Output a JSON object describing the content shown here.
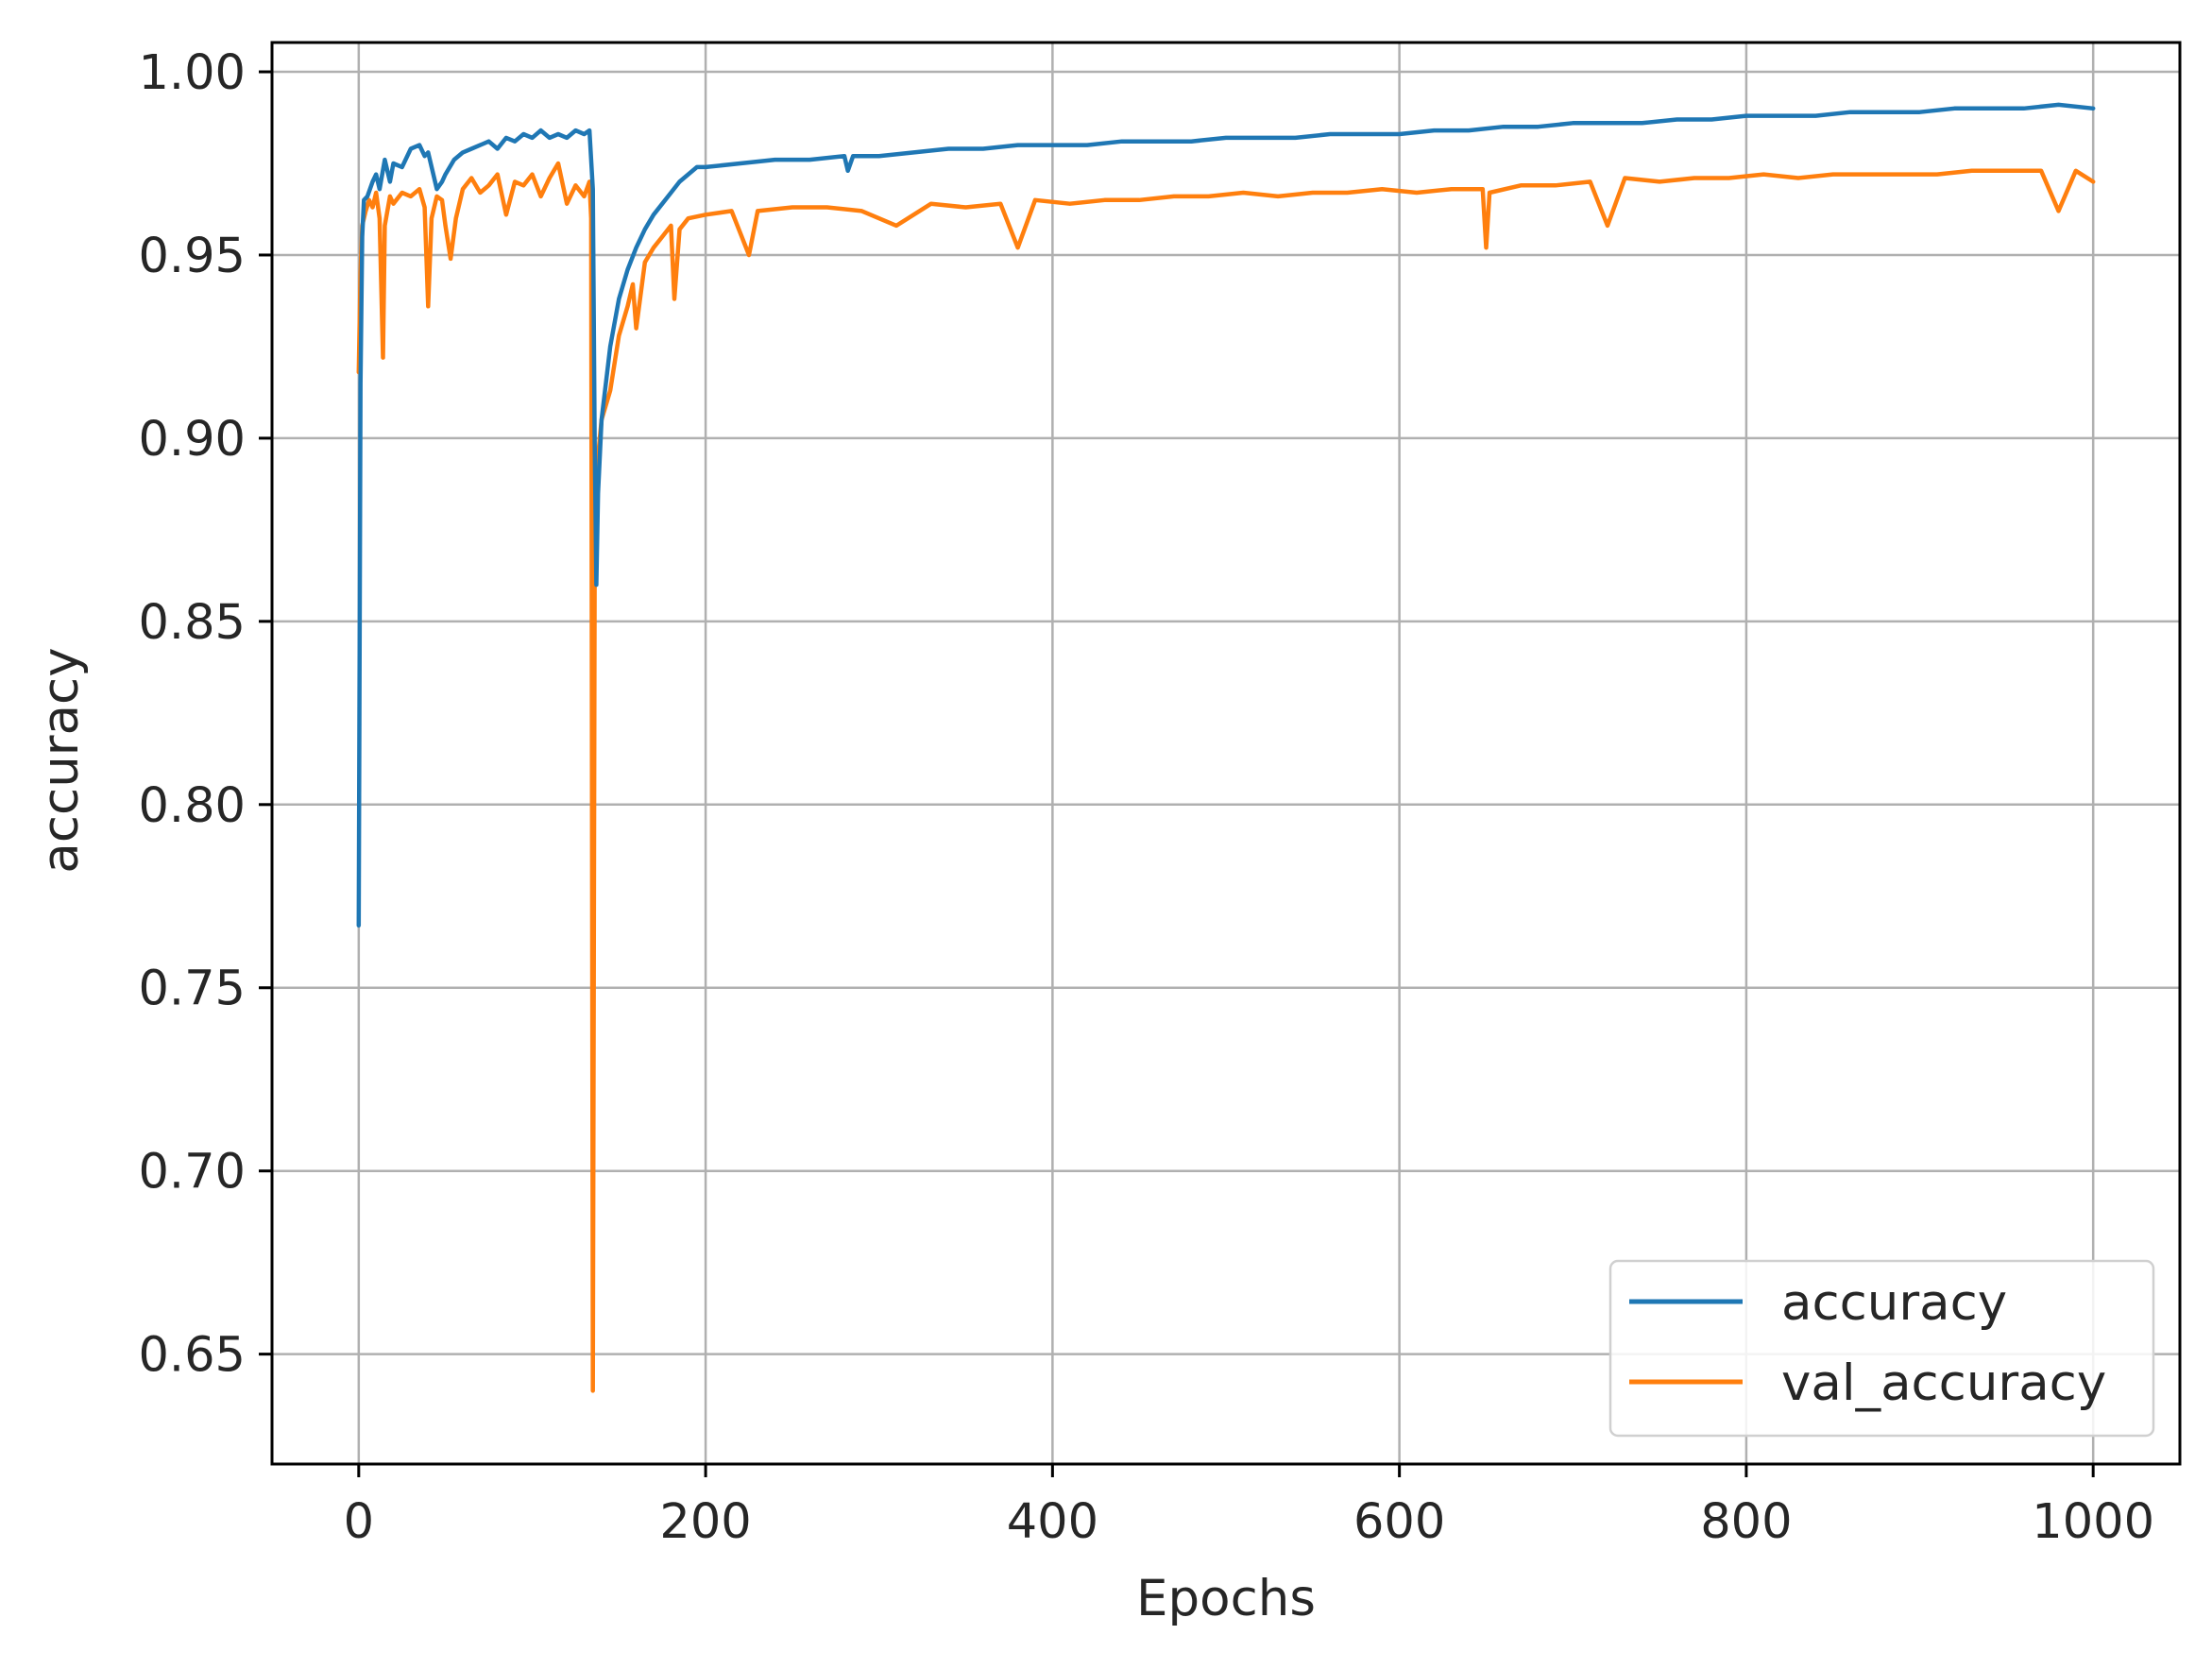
{
  "chart_data": {
    "type": "line",
    "title": "",
    "xlabel": "Epochs",
    "ylabel": "accuracy",
    "xlim": [
      -50,
      1050
    ],
    "ylim": [
      0.62,
      1.008
    ],
    "xticks": [
      0,
      200,
      400,
      600,
      800,
      1000
    ],
    "xtick_labels": [
      "0",
      "200",
      "400",
      "600",
      "800",
      "1000"
    ],
    "yticks": [
      0.65,
      0.7,
      0.75,
      0.8,
      0.85,
      0.9,
      0.95,
      1.0
    ],
    "ytick_labels": [
      "0.65",
      "0.70",
      "0.75",
      "0.80",
      "0.85",
      "0.90",
      "0.95",
      "1.00"
    ],
    "grid": true,
    "legend_position": "lower-right",
    "series": [
      {
        "name": "accuracy",
        "color": "#1f77b4",
        "points": [
          [
            0,
            0.767
          ],
          [
            1,
            0.915
          ],
          [
            2,
            0.955
          ],
          [
            3,
            0.965
          ],
          [
            5,
            0.966
          ],
          [
            8,
            0.97
          ],
          [
            10,
            0.972
          ],
          [
            12,
            0.968
          ],
          [
            15,
            0.976
          ],
          [
            18,
            0.97
          ],
          [
            20,
            0.975
          ],
          [
            25,
            0.974
          ],
          [
            30,
            0.979
          ],
          [
            35,
            0.98
          ],
          [
            38,
            0.977
          ],
          [
            40,
            0.978
          ],
          [
            45,
            0.968
          ],
          [
            48,
            0.97
          ],
          [
            50,
            0.972
          ],
          [
            55,
            0.976
          ],
          [
            60,
            0.978
          ],
          [
            65,
            0.979
          ],
          [
            70,
            0.98
          ],
          [
            75,
            0.981
          ],
          [
            80,
            0.979
          ],
          [
            85,
            0.982
          ],
          [
            90,
            0.981
          ],
          [
            95,
            0.983
          ],
          [
            100,
            0.982
          ],
          [
            105,
            0.984
          ],
          [
            110,
            0.982
          ],
          [
            115,
            0.983
          ],
          [
            120,
            0.982
          ],
          [
            125,
            0.984
          ],
          [
            130,
            0.983
          ],
          [
            133,
            0.984
          ],
          [
            135,
            0.968
          ],
          [
            136,
            0.9
          ],
          [
            137,
            0.86
          ],
          [
            138,
            0.885
          ],
          [
            140,
            0.905
          ],
          [
            145,
            0.925
          ],
          [
            150,
            0.938
          ],
          [
            155,
            0.946
          ],
          [
            160,
            0.952
          ],
          [
            165,
            0.957
          ],
          [
            170,
            0.961
          ],
          [
            175,
            0.964
          ],
          [
            180,
            0.967
          ],
          [
            185,
            0.97
          ],
          [
            190,
            0.972
          ],
          [
            195,
            0.974
          ],
          [
            200,
            0.974
          ],
          [
            220,
            0.975
          ],
          [
            240,
            0.976
          ],
          [
            260,
            0.976
          ],
          [
            280,
            0.977
          ],
          [
            282,
            0.973
          ],
          [
            285,
            0.977
          ],
          [
            300,
            0.977
          ],
          [
            320,
            0.978
          ],
          [
            340,
            0.979
          ],
          [
            360,
            0.979
          ],
          [
            380,
            0.98
          ],
          [
            400,
            0.98
          ],
          [
            420,
            0.98
          ],
          [
            440,
            0.981
          ],
          [
            460,
            0.981
          ],
          [
            480,
            0.981
          ],
          [
            500,
            0.982
          ],
          [
            520,
            0.982
          ],
          [
            540,
            0.982
          ],
          [
            560,
            0.983
          ],
          [
            580,
            0.983
          ],
          [
            600,
            0.983
          ],
          [
            620,
            0.984
          ],
          [
            640,
            0.984
          ],
          [
            660,
            0.985
          ],
          [
            680,
            0.985
          ],
          [
            700,
            0.986
          ],
          [
            720,
            0.986
          ],
          [
            740,
            0.986
          ],
          [
            760,
            0.987
          ],
          [
            780,
            0.987
          ],
          [
            800,
            0.988
          ],
          [
            820,
            0.988
          ],
          [
            840,
            0.988
          ],
          [
            860,
            0.989
          ],
          [
            880,
            0.989
          ],
          [
            900,
            0.989
          ],
          [
            920,
            0.99
          ],
          [
            940,
            0.99
          ],
          [
            960,
            0.99
          ],
          [
            980,
            0.991
          ],
          [
            1000,
            0.99
          ]
        ]
      },
      {
        "name": "val_accuracy",
        "color": "#ff7f0e",
        "points": [
          [
            0,
            0.918
          ],
          [
            1,
            0.945
          ],
          [
            2,
            0.958
          ],
          [
            4,
            0.962
          ],
          [
            6,
            0.965
          ],
          [
            8,
            0.963
          ],
          [
            10,
            0.967
          ],
          [
            12,
            0.96
          ],
          [
            14,
            0.922
          ],
          [
            15,
            0.958
          ],
          [
            18,
            0.966
          ],
          [
            20,
            0.964
          ],
          [
            25,
            0.967
          ],
          [
            30,
            0.966
          ],
          [
            35,
            0.968
          ],
          [
            38,
            0.963
          ],
          [
            40,
            0.936
          ],
          [
            42,
            0.96
          ],
          [
            45,
            0.966
          ],
          [
            48,
            0.965
          ],
          [
            50,
            0.958
          ],
          [
            53,
            0.949
          ],
          [
            56,
            0.96
          ],
          [
            60,
            0.968
          ],
          [
            65,
            0.971
          ],
          [
            70,
            0.967
          ],
          [
            75,
            0.969
          ],
          [
            80,
            0.972
          ],
          [
            85,
            0.961
          ],
          [
            90,
            0.97
          ],
          [
            95,
            0.969
          ],
          [
            100,
            0.972
          ],
          [
            105,
            0.966
          ],
          [
            110,
            0.971
          ],
          [
            115,
            0.975
          ],
          [
            120,
            0.964
          ],
          [
            125,
            0.969
          ],
          [
            130,
            0.966
          ],
          [
            133,
            0.97
          ],
          [
            134,
            0.96
          ],
          [
            135,
            0.64
          ],
          [
            136,
            0.86
          ],
          [
            138,
            0.895
          ],
          [
            140,
            0.905
          ],
          [
            145,
            0.913
          ],
          [
            150,
            0.928
          ],
          [
            155,
            0.936
          ],
          [
            158,
            0.942
          ],
          [
            160,
            0.93
          ],
          [
            165,
            0.948
          ],
          [
            170,
            0.952
          ],
          [
            175,
            0.955
          ],
          [
            180,
            0.958
          ],
          [
            182,
            0.938
          ],
          [
            185,
            0.957
          ],
          [
            190,
            0.96
          ],
          [
            200,
            0.961
          ],
          [
            215,
            0.962
          ],
          [
            225,
            0.95
          ],
          [
            230,
            0.962
          ],
          [
            250,
            0.963
          ],
          [
            270,
            0.963
          ],
          [
            290,
            0.962
          ],
          [
            310,
            0.958
          ],
          [
            330,
            0.964
          ],
          [
            350,
            0.963
          ],
          [
            370,
            0.964
          ],
          [
            380,
            0.952
          ],
          [
            390,
            0.965
          ],
          [
            410,
            0.964
          ],
          [
            430,
            0.965
          ],
          [
            450,
            0.965
          ],
          [
            470,
            0.966
          ],
          [
            490,
            0.966
          ],
          [
            510,
            0.967
          ],
          [
            530,
            0.966
          ],
          [
            550,
            0.967
          ],
          [
            570,
            0.967
          ],
          [
            590,
            0.968
          ],
          [
            610,
            0.967
          ],
          [
            630,
            0.968
          ],
          [
            648,
            0.968
          ],
          [
            650,
            0.952
          ],
          [
            652,
            0.967
          ],
          [
            670,
            0.969
          ],
          [
            690,
            0.969
          ],
          [
            710,
            0.97
          ],
          [
            720,
            0.958
          ],
          [
            730,
            0.971
          ],
          [
            750,
            0.97
          ],
          [
            770,
            0.971
          ],
          [
            790,
            0.971
          ],
          [
            810,
            0.972
          ],
          [
            830,
            0.971
          ],
          [
            850,
            0.972
          ],
          [
            870,
            0.972
          ],
          [
            890,
            0.972
          ],
          [
            910,
            0.972
          ],
          [
            930,
            0.973
          ],
          [
            950,
            0.973
          ],
          [
            970,
            0.973
          ],
          [
            980,
            0.962
          ],
          [
            990,
            0.973
          ],
          [
            1000,
            0.97
          ]
        ]
      }
    ]
  }
}
